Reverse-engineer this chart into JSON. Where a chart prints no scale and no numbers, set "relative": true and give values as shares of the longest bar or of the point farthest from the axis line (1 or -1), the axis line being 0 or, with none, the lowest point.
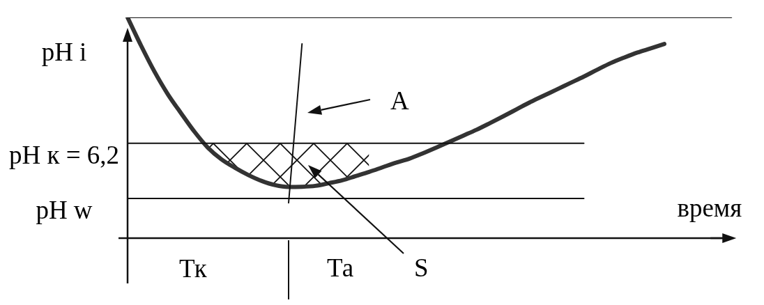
{
  "chart_data": {
    "type": "line",
    "relative": true,
    "xlabel": "время",
    "marker": "none",
    "categories": [
      null,
      null,
      null,
      null,
      null,
      null,
      null,
      null,
      null,
      null,
      null,
      null,
      null,
      null,
      null,
      null,
      null,
      null,
      null,
      null,
      null,
      null,
      null,
      null,
      null,
      null,
      null,
      null,
      null,
      null,
      null,
      null,
      null,
      null,
      null,
      null,
      null,
      null,
      null,
      null,
      null,
      null,
      null,
      null,
      null,
      null
    ],
    "series": [
      {
        "color": "#333333",
        "values": [
          1,
          0.873,
          0.755,
          0.652,
          0.565,
          0.481,
          0.409,
          0.357,
          0.319,
          0.286,
          0.259,
          0.24,
          0.232,
          0.233,
          0.237,
          0.249,
          0.262,
          0.281,
          0.3,
          0.321,
          0.342,
          0.36,
          0.384,
          0.41,
          0.437,
          0.464,
          0.491,
          0.521,
          0.552,
          0.584,
          0.616,
          0.645,
          0.674,
          0.703,
          0.732,
          0.763,
          0.793,
          0.818,
          0.841,
          0.86,
          0.88,
          null,
          null,
          null,
          null,
          null
        ]
      },
      {
        "color": "#111111",
        "values": [
          1,
          1,
          1,
          1,
          1,
          1,
          1,
          1,
          1,
          1,
          1,
          1,
          1,
          1,
          1,
          1,
          1,
          1,
          1,
          1,
          1,
          1,
          1,
          1,
          1,
          1,
          1,
          1,
          1,
          1,
          1,
          1,
          1,
          1,
          1,
          1,
          1,
          1,
          1,
          1,
          1,
          1,
          1,
          1,
          1,
          1
        ]
      },
      {
        "name": "pH к = 6,2",
        "color": "#111111",
        "values": [
          0.43,
          0.43,
          0.43,
          0.43,
          0.43,
          0.43,
          0.43,
          0.43,
          0.43,
          0.43,
          0.43,
          0.43,
          0.43,
          0.43,
          0.43,
          0.43,
          0.43,
          0.43,
          0.43,
          0.43,
          0.43,
          0.43,
          0.43,
          0.43,
          0.43,
          0.43,
          0.43,
          0.43,
          0.43,
          0.43,
          0.43,
          0.43,
          0.43,
          0.43,
          0.43,
          null,
          null,
          null,
          null,
          null,
          null,
          null,
          null,
          null,
          null,
          null
        ]
      },
      {
        "name": "pH w",
        "color": "#111111",
        "values": [
          0.18,
          0.18,
          0.18,
          0.18,
          0.18,
          0.18,
          0.18,
          0.18,
          0.18,
          0.18,
          0.18,
          0.18,
          0.18,
          0.18,
          0.18,
          0.18,
          0.18,
          0.18,
          0.18,
          0.18,
          0.18,
          0.18,
          0.18,
          0.18,
          0.18,
          0.18,
          0.18,
          0.18,
          0.18,
          0.18,
          0.18,
          0.18,
          0.18,
          0.18,
          0.18,
          null,
          null,
          null,
          null,
          null,
          null,
          null,
          null,
          null,
          null,
          null
        ]
      },
      {
        "color": "#111111",
        "values": [
          null,
          null,
          null,
          null,
          null,
          null,
          null,
          null,
          null,
          null,
          null,
          null,
          0.16,
          0.88,
          null,
          null,
          null,
          null,
          null,
          null,
          null,
          null,
          null,
          null,
          null,
          null,
          null,
          null,
          null,
          null,
          null,
          null,
          null,
          null,
          null,
          null,
          null,
          null,
          null,
          null,
          null,
          null,
          null,
          null,
          null,
          null
        ]
      }
    ],
    "annotations": [
      "pH i",
      "A",
      "Тк",
      "Та",
      "S"
    ]
  }
}
